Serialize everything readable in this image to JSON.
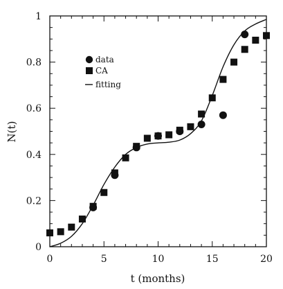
{
  "chart_data": {
    "type": "scatter",
    "xlabel": "t (months)",
    "ylabel": "N(t)",
    "xlim": [
      0,
      20
    ],
    "ylim": [
      0,
      1
    ],
    "x_ticks": [
      "0",
      "5",
      "10",
      "15",
      "20"
    ],
    "y_ticks": [
      "0",
      "0.2",
      "0.4",
      "0.6",
      "0.8",
      "1"
    ],
    "grid": false,
    "legend_position": "upper-left",
    "legend": [
      "data",
      "CA",
      "fitting"
    ],
    "series": [
      {
        "name": "data",
        "marker": "circle",
        "color": "#111111",
        "x": [
          4,
          6,
          8,
          10,
          12,
          14,
          16,
          18
        ],
        "y": [
          0.17,
          0.31,
          0.43,
          0.48,
          0.5,
          0.53,
          0.57,
          0.92
        ]
      },
      {
        "name": "CA",
        "marker": "square",
        "color": "#111111",
        "x": [
          0,
          1,
          2,
          3,
          4,
          5,
          6,
          7,
          8,
          9,
          10,
          11,
          12,
          13,
          14,
          15,
          16,
          17,
          18,
          19,
          20
        ],
        "y": [
          0.06,
          0.065,
          0.085,
          0.12,
          0.175,
          0.235,
          0.32,
          0.385,
          0.435,
          0.47,
          0.48,
          0.485,
          0.505,
          0.52,
          0.575,
          0.645,
          0.725,
          0.8,
          0.855,
          0.895,
          0.915
        ]
      },
      {
        "name": "fitting",
        "marker": "line",
        "color": "#111111",
        "x": [
          0,
          1,
          2,
          3,
          4,
          5,
          6,
          7,
          8,
          9,
          10,
          11,
          12,
          13,
          14,
          15,
          16,
          17,
          18,
          19,
          20
        ],
        "y": [
          0.0,
          0.015,
          0.045,
          0.1,
          0.18,
          0.27,
          0.345,
          0.4,
          0.43,
          0.445,
          0.45,
          0.453,
          0.462,
          0.49,
          0.545,
          0.655,
          0.78,
          0.875,
          0.935,
          0.965,
          0.985
        ]
      }
    ]
  }
}
